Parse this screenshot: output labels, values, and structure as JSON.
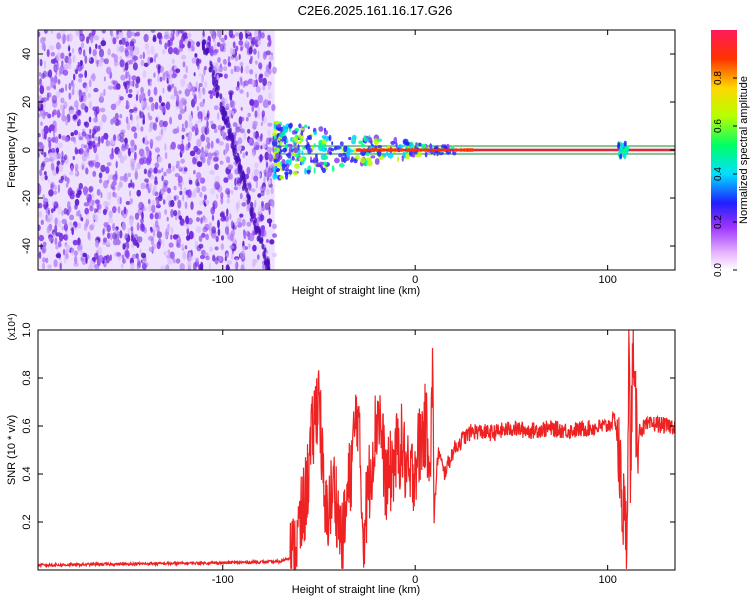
{
  "title": "C2E6.2025.161.16.17.G26",
  "colors": {
    "snr_line": "#ee2222",
    "spectrogram_line": "#e8243c",
    "noise": "#7a22e0",
    "axes": "#000000"
  },
  "chart_data": [
    {
      "type": "heatmap",
      "xlabel": "Height of straight line (km)",
      "ylabel": "Frequency (Hz)",
      "xlim": [
        -196,
        135
      ],
      "ylim": [
        -50,
        50
      ],
      "x_ticks": [
        -100,
        0,
        100
      ],
      "x_tick_labels": [
        "-100",
        "0",
        "100"
      ],
      "y_ticks": [
        -40,
        -20,
        0,
        20,
        40
      ],
      "y_tick_labels": [
        "-40",
        "-20",
        "0",
        "20",
        "40"
      ],
      "colorbar": {
        "label": "Normalized spectral amplitude",
        "range": [
          0,
          1
        ],
        "ticks": [
          0.0,
          0.2,
          0.4,
          0.6,
          0.8
        ],
        "tick_labels": [
          "0.0",
          "0.2",
          "0.4",
          "0.6",
          "0.8"
        ]
      },
      "features": {
        "noise_region_x": [
          -196,
          -73
        ],
        "signal_onset_x": -73,
        "signal_frequency": 0,
        "burst_x": 108
      }
    },
    {
      "type": "line",
      "xlabel": "Height of straight line (km)",
      "ylabel": "SNR (10 * v/v)",
      "y_multiplier": "(x10⁴)",
      "xlim": [
        -196,
        135
      ],
      "ylim": [
        0,
        1.0
      ],
      "x_ticks": [
        -100,
        0,
        100
      ],
      "x_tick_labels": [
        "-100",
        "0",
        "100"
      ],
      "y_ticks": [
        0.2,
        0.4,
        0.6,
        0.8,
        1.0
      ],
      "y_tick_labels": [
        "0.2",
        "0.4",
        "0.6",
        "0.8",
        "1.0"
      ],
      "series": [
        {
          "x": [
            -196,
            -150,
            -100,
            -70,
            -63,
            -57,
            -53,
            -50,
            -47,
            -42,
            -38,
            -33,
            -30,
            -27,
            -22,
            -19,
            -15,
            -10,
            -7,
            -3,
            0,
            5,
            8,
            9,
            10,
            12,
            15,
            20,
            25,
            30,
            40,
            50,
            60,
            70,
            80,
            90,
            100,
            104,
            107,
            110,
            111,
            112,
            113,
            114,
            116,
            120,
            125,
            130,
            135
          ],
          "y": [
            0.02,
            0.025,
            0.03,
            0.035,
            0.06,
            0.3,
            0.58,
            0.76,
            0.2,
            0.35,
            0.1,
            0.45,
            0.69,
            0.15,
            0.5,
            0.68,
            0.35,
            0.48,
            0.52,
            0.35,
            0.45,
            0.6,
            0.5,
            0.8,
            0.25,
            0.5,
            0.4,
            0.5,
            0.55,
            0.58,
            0.57,
            0.59,
            0.58,
            0.59,
            0.58,
            0.59,
            0.6,
            0.63,
            0.35,
            0.1,
            0.99,
            0.3,
            1.0,
            0.65,
            0.58,
            0.6,
            0.61,
            0.6,
            0.6
          ]
        }
      ]
    }
  ]
}
